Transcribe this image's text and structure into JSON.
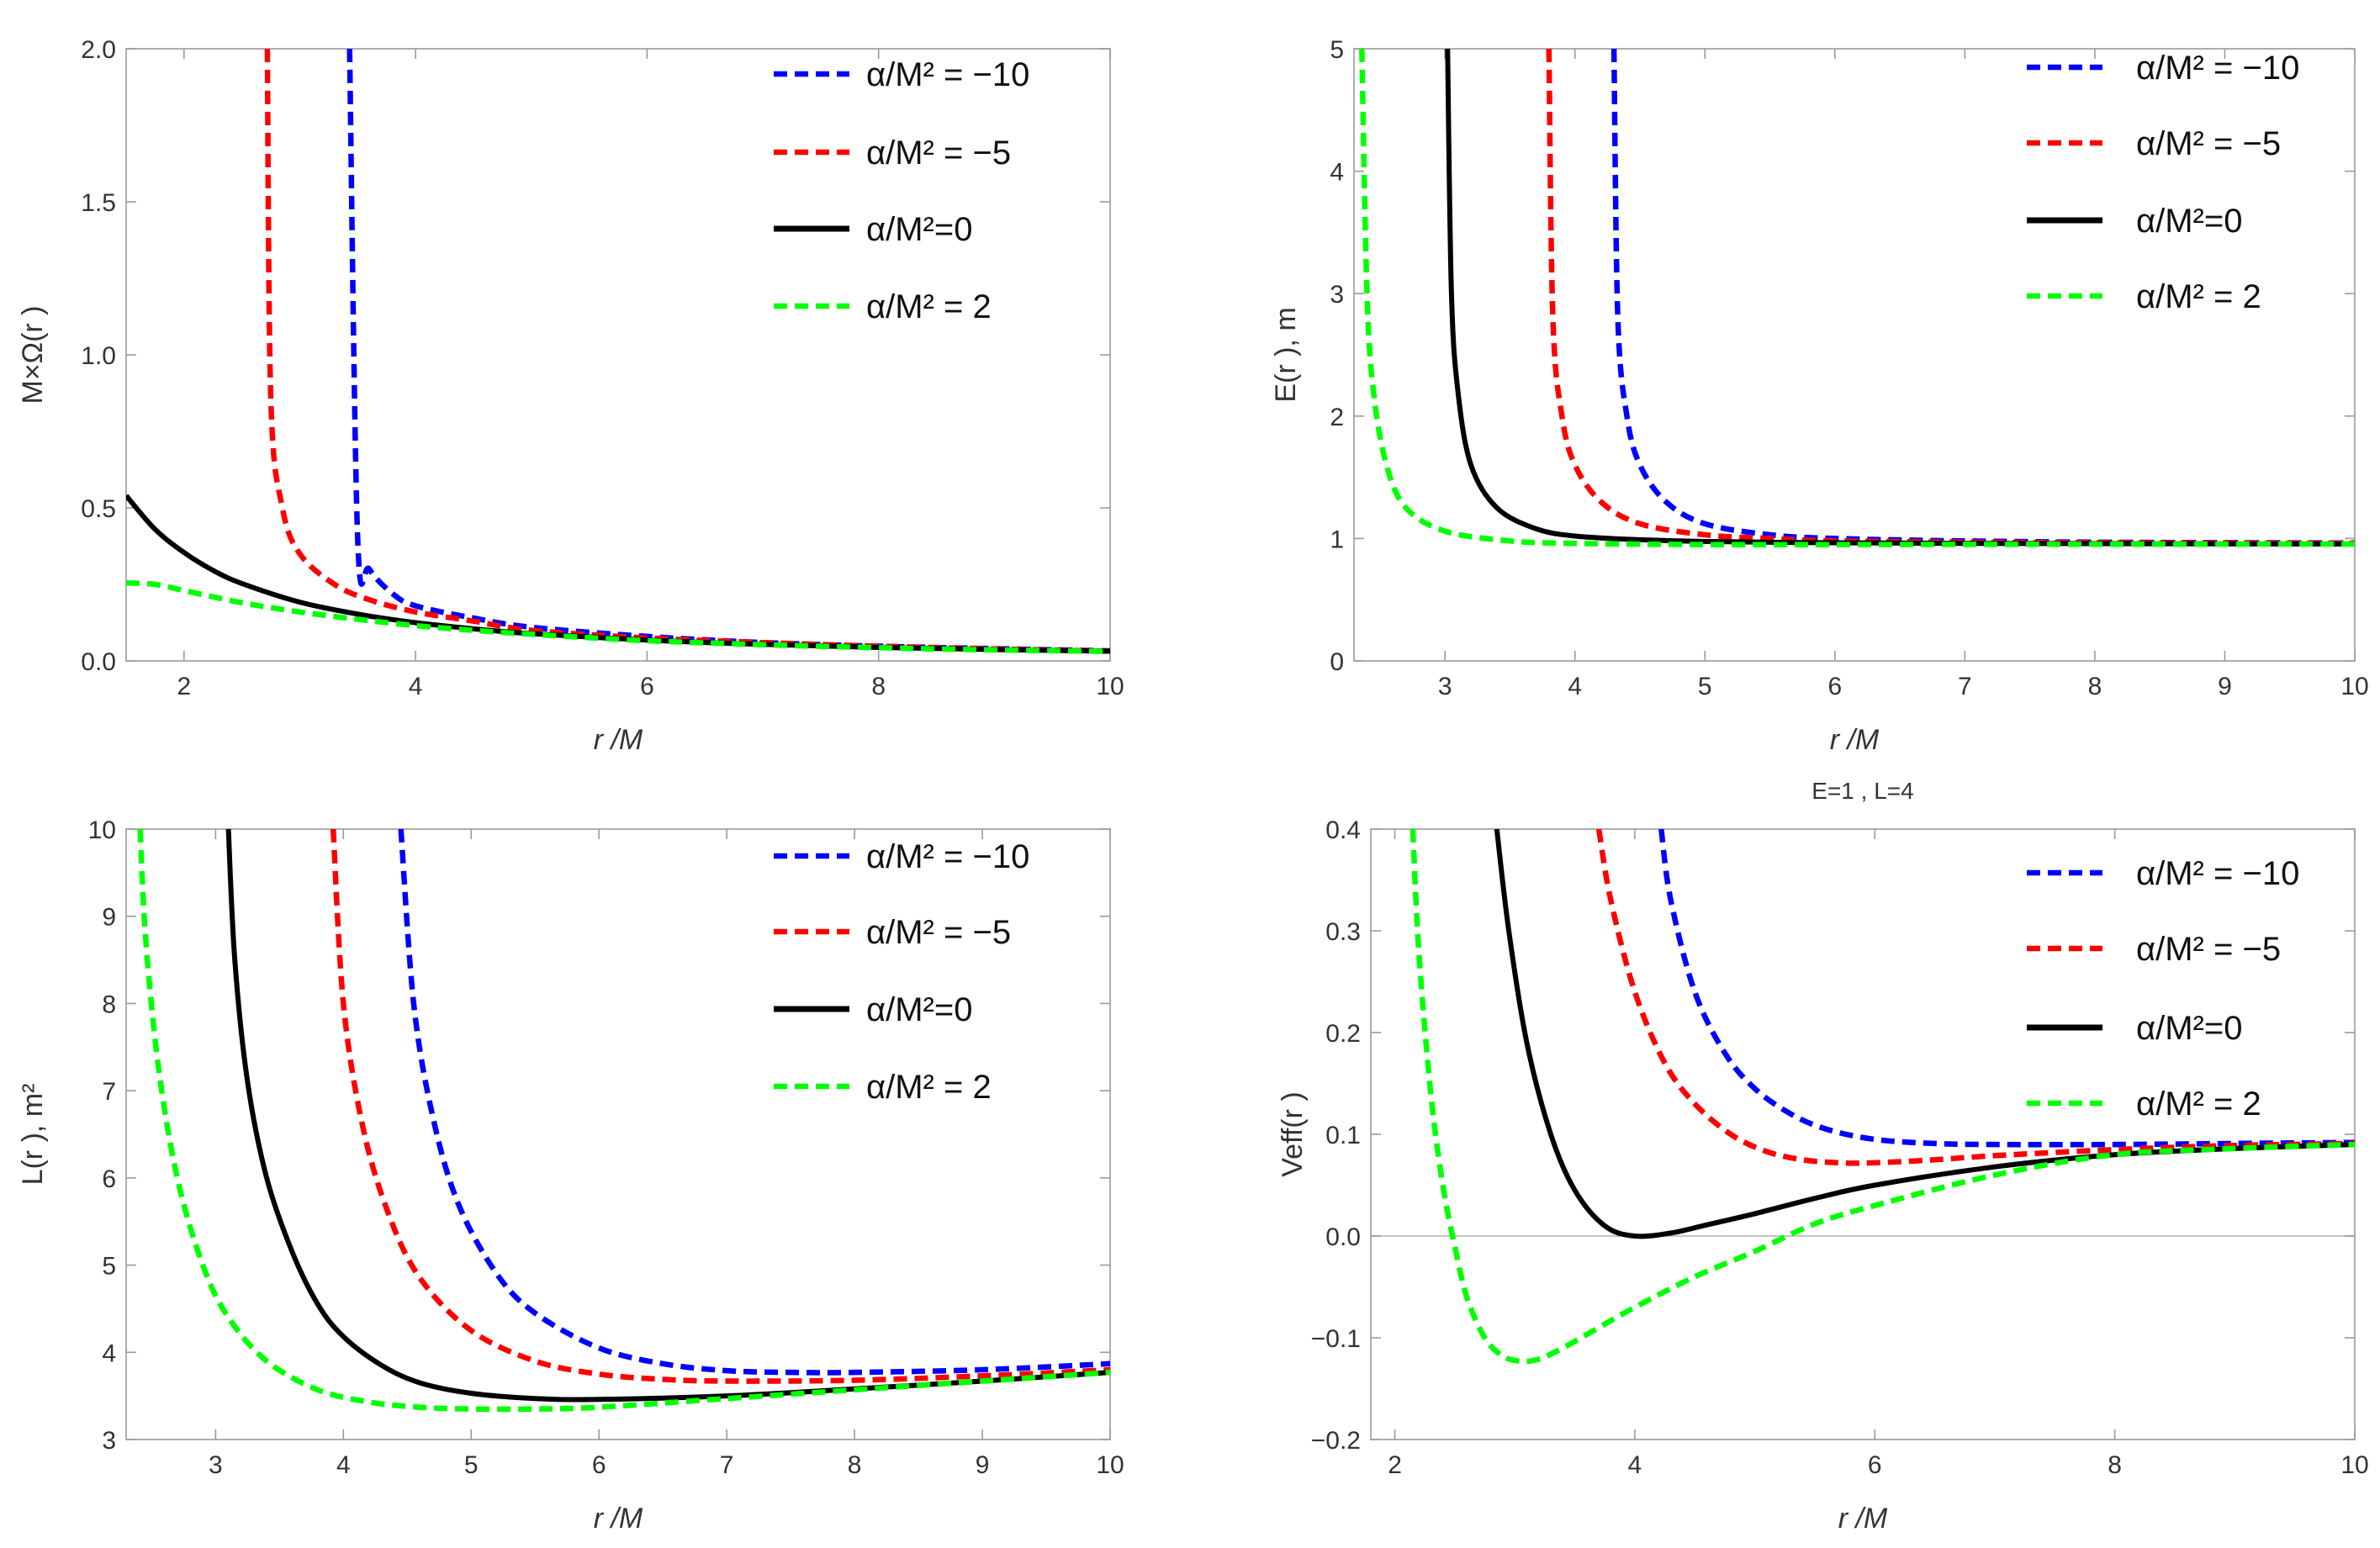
{
  "chart_data": [
    {
      "type": "line",
      "xlabel": "r /M",
      "ylabel": "M×Ω(r )",
      "title": "",
      "xlim": [
        1.5,
        10
      ],
      "ylim": [
        0,
        2.0
      ],
      "xticks": [
        2,
        4,
        6,
        8,
        10
      ],
      "xtick_labels": [
        "2",
        "4",
        "6",
        "8",
        "10"
      ],
      "yticks": [
        0.0,
        0.5,
        1.0,
        1.5,
        2.0
      ],
      "ytick_labels": [
        "0.0",
        "0.5",
        "1.0",
        "1.5",
        "2.0"
      ],
      "grid": false,
      "legend_position": "top-right",
      "series": [
        {
          "name": "α/M² = −10",
          "legend_label": "α/M² = −10",
          "color": "#0000ff",
          "style": "dashed",
          "x": [
            3.43,
            3.5,
            3.6,
            3.8,
            4.0,
            4.5,
            5.0,
            6.0,
            7.0,
            8.0,
            9.0,
            10.0
          ],
          "y": [
            2.0,
            0.4,
            0.3,
            0.22,
            0.18,
            0.14,
            0.11,
            0.08,
            0.06,
            0.048,
            0.04,
            0.033
          ]
        },
        {
          "name": "α/M² = −5",
          "legend_label": "α/M² = −5",
          "color": "#ff0000",
          "style": "dashed",
          "x": [
            2.72,
            2.75,
            2.85,
            3.0,
            3.3,
            3.6,
            4.0,
            4.5,
            5.0,
            6.0,
            7.0,
            8.0,
            9.0,
            10.0
          ],
          "y": [
            2.0,
            0.85,
            0.5,
            0.35,
            0.25,
            0.2,
            0.16,
            0.13,
            0.1,
            0.075,
            0.06,
            0.048,
            0.039,
            0.032
          ]
        },
        {
          "name": "α/M²=0",
          "legend_label": "α/M²=0",
          "color": "#000000",
          "style": "solid",
          "x": [
            1.5,
            1.75,
            2.0,
            2.25,
            2.5,
            3.0,
            3.5,
            4.0,
            4.5,
            5.0,
            6.0,
            7.0,
            8.0,
            9.0,
            10.0
          ],
          "y": [
            0.54,
            0.43,
            0.354,
            0.296,
            0.253,
            0.192,
            0.153,
            0.125,
            0.105,
            0.089,
            0.068,
            0.054,
            0.044,
            0.037,
            0.032
          ]
        },
        {
          "name": "α/M² = 2",
          "legend_label": "α/M² = 2",
          "color": "#00ff00",
          "style": "dashed",
          "x": [
            1.5,
            1.75,
            2.0,
            2.5,
            3.0,
            3.5,
            4.0,
            4.5,
            5.0,
            6.0,
            7.0,
            8.0,
            9.0,
            10.0
          ],
          "y": [
            0.255,
            0.25,
            0.23,
            0.19,
            0.16,
            0.136,
            0.115,
            0.1,
            0.087,
            0.066,
            0.053,
            0.043,
            0.036,
            0.031
          ]
        }
      ]
    },
    {
      "type": "line",
      "xlabel": "r /M",
      "ylabel": "E(r ), m",
      "title": "",
      "xlim": [
        2.3,
        10
      ],
      "ylim": [
        0,
        5
      ],
      "xticks": [
        3,
        4,
        5,
        6,
        7,
        8,
        9,
        10
      ],
      "xtick_labels": [
        "3",
        "4",
        "5",
        "6",
        "7",
        "8",
        "9",
        "10"
      ],
      "yticks": [
        0,
        1,
        2,
        3,
        4,
        5
      ],
      "ytick_labels": [
        "0",
        "1",
        "2",
        "3",
        "4",
        "5"
      ],
      "grid": false,
      "legend_position": "top-right",
      "series": [
        {
          "name": "α/M² = −10",
          "legend_label": "α/M² = −10",
          "color": "#0000ff",
          "style": "dashed",
          "x": [
            4.3,
            4.33,
            4.4,
            4.5,
            4.7,
            5.0,
            5.5,
            6.0,
            7.0,
            8.0,
            9.0,
            10.0
          ],
          "y": [
            5.0,
            2.8,
            2.0,
            1.6,
            1.3,
            1.12,
            1.03,
            1.0,
            0.98,
            0.97,
            0.966,
            0.963
          ]
        },
        {
          "name": "α/M² = −5",
          "legend_label": "α/M² = −5",
          "color": "#ff0000",
          "style": "dashed",
          "x": [
            3.8,
            3.83,
            3.9,
            4.0,
            4.2,
            4.5,
            5.0,
            5.5,
            6.0,
            7.0,
            8.0,
            9.0,
            10.0
          ],
          "y": [
            5.0,
            2.8,
            2.0,
            1.6,
            1.3,
            1.12,
            1.03,
            1.0,
            0.98,
            0.97,
            0.965,
            0.962,
            0.96
          ]
        },
        {
          "name": "α/M²=0",
          "legend_label": "α/M²=0",
          "color": "#000000",
          "style": "solid",
          "x": [
            3.02,
            3.05,
            3.1,
            3.2,
            3.4,
            3.7,
            4.0,
            4.5,
            5.0,
            6.0,
            7.0,
            8.0,
            9.0,
            10.0
          ],
          "y": [
            5.0,
            3.0,
            2.2,
            1.6,
            1.25,
            1.08,
            1.02,
            0.99,
            0.975,
            0.965,
            0.96,
            0.958,
            0.956,
            0.955
          ]
        },
        {
          "name": "α/M² = 2",
          "legend_label": "α/M² = 2",
          "color": "#00ff00",
          "style": "dashed",
          "x": [
            2.36,
            2.4,
            2.45,
            2.55,
            2.7,
            3.0,
            3.5,
            4.0,
            5.0,
            6.0,
            7.0,
            8.0,
            9.0,
            10.0
          ],
          "y": [
            5.0,
            3.0,
            2.2,
            1.6,
            1.25,
            1.06,
            0.98,
            0.96,
            0.95,
            0.95,
            0.952,
            0.953,
            0.954,
            0.955
          ]
        }
      ]
    },
    {
      "type": "line",
      "xlabel": "r /M",
      "ylabel": "L(r ), m²",
      "title": "",
      "xlim": [
        2.3,
        10
      ],
      "ylim": [
        3,
        10
      ],
      "xticks": [
        3,
        4,
        5,
        6,
        7,
        8,
        9,
        10
      ],
      "xtick_labels": [
        "3",
        "4",
        "5",
        "6",
        "7",
        "8",
        "9",
        "10"
      ],
      "yticks": [
        3,
        4,
        5,
        6,
        7,
        8,
        9,
        10
      ],
      "ytick_labels": [
        "3",
        "4",
        "5",
        "6",
        "7",
        "8",
        "9",
        "10"
      ],
      "grid": false,
      "legend_position": "top-right",
      "series": [
        {
          "name": "α/M² = −10",
          "legend_label": "α/M² = −10",
          "color": "#0000ff",
          "style": "dashed",
          "x": [
            4.45,
            4.55,
            4.7,
            4.9,
            5.2,
            5.5,
            6.0,
            6.5,
            7.0,
            7.5,
            8.0,
            9.0,
            10.0
          ],
          "y": [
            10.0,
            8.0,
            6.7,
            5.7,
            4.9,
            4.45,
            4.05,
            3.87,
            3.79,
            3.77,
            3.77,
            3.8,
            3.87
          ]
        },
        {
          "name": "α/M² = −5",
          "legend_label": "α/M² = −5",
          "color": "#ff0000",
          "style": "dashed",
          "x": [
            3.92,
            4.0,
            4.15,
            4.35,
            4.6,
            5.0,
            5.5,
            6.0,
            6.5,
            7.0,
            8.0,
            9.0,
            10.0
          ],
          "y": [
            10.0,
            8.0,
            6.6,
            5.6,
            4.85,
            4.25,
            3.9,
            3.75,
            3.69,
            3.67,
            3.68,
            3.73,
            3.8
          ]
        },
        {
          "name": "α/M²=0",
          "legend_label": "α/M²=0",
          "color": "#000000",
          "style": "solid",
          "x": [
            3.1,
            3.15,
            3.25,
            3.4,
            3.6,
            3.8,
            4.0,
            4.3,
            4.6,
            5.0,
            5.5,
            6.0,
            7.0,
            8.0,
            9.0,
            10.0
          ],
          "y": [
            10.0,
            8.5,
            7.1,
            6.0,
            5.15,
            4.55,
            4.18,
            3.85,
            3.65,
            3.53,
            3.47,
            3.46,
            3.5,
            3.58,
            3.67,
            3.77
          ]
        },
        {
          "name": "α/M² = 2",
          "legend_label": "α/M² = 2",
          "color": "#00ff00",
          "style": "dashed",
          "x": [
            2.41,
            2.45,
            2.55,
            2.7,
            2.9,
            3.1,
            3.4,
            3.8,
            4.2,
            4.6,
            5.0,
            5.5,
            6.0,
            7.0,
            8.0,
            9.0,
            10.0
          ],
          "y": [
            10.0,
            8.8,
            7.3,
            6.0,
            5.0,
            4.4,
            3.9,
            3.57,
            3.43,
            3.37,
            3.35,
            3.35,
            3.37,
            3.47,
            3.57,
            3.67,
            3.77
          ]
        }
      ]
    },
    {
      "type": "line",
      "title": "E=1 , L=4",
      "xlabel": "r /M",
      "ylabel": "Veff(r )",
      "xlim": [
        1.8,
        10
      ],
      "ylim": [
        -0.2,
        0.4
      ],
      "xticks": [
        2,
        4,
        6,
        8,
        10
      ],
      "xtick_labels": [
        "2",
        "4",
        "6",
        "8",
        "10"
      ],
      "yticks": [
        -0.2,
        -0.1,
        0.0,
        0.1,
        0.2,
        0.3,
        0.4
      ],
      "ytick_labels": [
        "−0.2",
        "−0.1",
        "0.0",
        "0.1",
        "0.2",
        "0.3",
        "0.4"
      ],
      "grid": false,
      "zero_line": true,
      "legend_position": "top-right",
      "series": [
        {
          "name": "α/M² = −10",
          "legend_label": "α/M² = −10",
          "color": "#0000ff",
          "style": "dashed",
          "x": [
            4.22,
            4.3,
            4.5,
            4.75,
            5.0,
            5.3,
            5.6,
            6.0,
            6.5,
            7.0,
            8.0,
            9.0,
            10.0
          ],
          "y": [
            0.4,
            0.33,
            0.24,
            0.18,
            0.145,
            0.12,
            0.105,
            0.095,
            0.091,
            0.09,
            0.09,
            0.091,
            0.092
          ]
        },
        {
          "name": "α/M² = −5",
          "legend_label": "α/M² = −5",
          "color": "#ff0000",
          "style": "dashed",
          "x": [
            3.7,
            3.8,
            4.0,
            4.25,
            4.5,
            4.8,
            5.1,
            5.4,
            5.7,
            6.0,
            6.5,
            7.0,
            8.0,
            9.0,
            10.0
          ],
          "y": [
            0.4,
            0.33,
            0.24,
            0.17,
            0.13,
            0.1,
            0.083,
            0.075,
            0.072,
            0.072,
            0.075,
            0.079,
            0.085,
            0.089,
            0.091
          ]
        },
        {
          "name": "α/M²=0",
          "legend_label": "α/M²=0",
          "color": "#000000",
          "style": "solid",
          "x": [
            2.85,
            2.95,
            3.1,
            3.3,
            3.5,
            3.75,
            4.0,
            4.3,
            4.6,
            5.0,
            5.5,
            6.0,
            7.0,
            8.0,
            9.0,
            10.0
          ],
          "y": [
            0.4,
            0.3,
            0.19,
            0.1,
            0.045,
            0.01,
            0.0,
            0.003,
            0.011,
            0.022,
            0.037,
            0.05,
            0.068,
            0.08,
            0.086,
            0.09
          ]
        },
        {
          "name": "α/M² = 2",
          "legend_label": "α/M² = 2",
          "color": "#00ff00",
          "style": "dashed",
          "x": [
            2.15,
            2.2,
            2.3,
            2.4,
            2.5,
            2.6,
            2.75,
            2.9,
            3.05,
            3.2,
            3.4,
            3.7,
            4.0,
            4.5,
            5.0,
            5.5,
            6.0,
            7.0,
            8.0,
            9.0,
            10.0
          ],
          "y": [
            0.4,
            0.28,
            0.14,
            0.05,
            -0.01,
            -0.06,
            -0.1,
            -0.118,
            -0.123,
            -0.121,
            -0.11,
            -0.09,
            -0.07,
            -0.04,
            -0.015,
            0.012,
            0.03,
            0.06,
            0.08,
            0.086,
            0.09
          ]
        }
      ]
    }
  ]
}
